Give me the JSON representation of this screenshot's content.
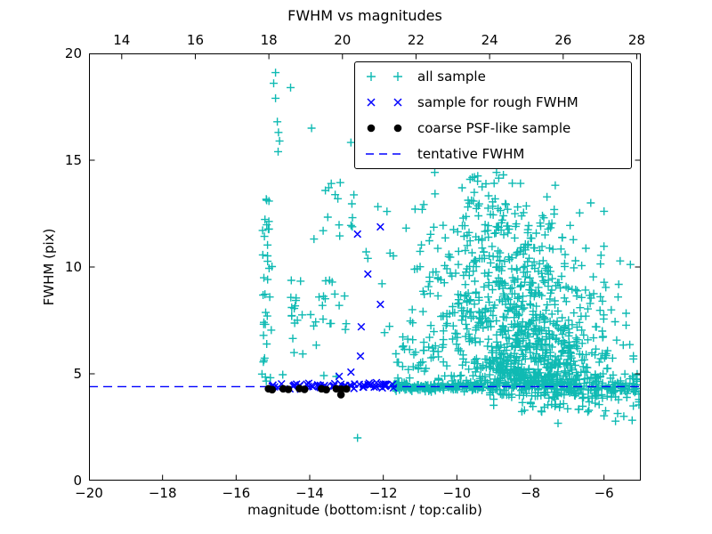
{
  "title": "FWHM vs magnitudes",
  "axes": {
    "xlabel": "magnitude (bottom:isnt / top:calib)",
    "ylabel": "FWHM (pix)",
    "xlim": [
      -20,
      -5
    ],
    "ylim": [
      0,
      20
    ],
    "x_bottom_ticks": [
      {
        "v": -20,
        "label": "−20"
      },
      {
        "v": -18,
        "label": "−18"
      },
      {
        "v": -16,
        "label": "−16"
      },
      {
        "v": -14,
        "label": "−14"
      },
      {
        "v": -12,
        "label": "−12"
      },
      {
        "v": -10,
        "label": "−10"
      },
      {
        "v": -8,
        "label": "−8"
      },
      {
        "v": -6,
        "label": "−6"
      }
    ],
    "x_top_ticks": [
      {
        "v": 14,
        "label": "14"
      },
      {
        "v": 16,
        "label": "16"
      },
      {
        "v": 18,
        "label": "18"
      },
      {
        "v": 20,
        "label": "20"
      },
      {
        "v": 22,
        "label": "22"
      },
      {
        "v": 24,
        "label": "24"
      },
      {
        "v": 26,
        "label": "26"
      },
      {
        "v": 28,
        "label": "28"
      }
    ],
    "top_axis_offset_calib_minus_isnt": 33.11,
    "y_left_ticks": [
      {
        "v": 0,
        "label": "0"
      },
      {
        "v": 5,
        "label": "5"
      },
      {
        "v": 10,
        "label": "10"
      },
      {
        "v": 15,
        "label": "15"
      },
      {
        "v": 20,
        "label": "20"
      }
    ]
  },
  "colors": {
    "all_sample": "#0fbab3",
    "rough_sample": "#0000ff",
    "psf_sample": "#000000",
    "tentative_line": "#0000ff",
    "axis": "#000000",
    "background": "#ffffff"
  },
  "legend": {
    "items": [
      {
        "label": "all sample",
        "marker": "plus",
        "color_key": "all_sample"
      },
      {
        "label": "sample for rough FWHM",
        "marker": "x",
        "color_key": "rough_sample"
      },
      {
        "label": "coarse PSF-like sample",
        "marker": "dot",
        "color_key": "psf_sample"
      },
      {
        "label": "tentative FWHM",
        "marker": "dashline",
        "color_key": "tentative_line"
      }
    ]
  },
  "chart_data": {
    "type": "scatter",
    "title": "FWHM vs magnitudes",
    "xlabel": "magnitude (bottom:isnt / top:calib)",
    "ylabel": "FWHM (pix)",
    "xlim": [
      -20,
      -5
    ],
    "ylim": [
      0,
      20
    ],
    "grid": false,
    "legend_position": "upper right",
    "tentative_fwhm_value": 4.4,
    "seed": 7,
    "note": "Dense scatter clouds are encoded as density clusters (dist u=uniform[min,max], g=gaussian[mu,sigma,clipmin,clipmax]) estimated from the pixels; distinctive points are listed explicitly.",
    "series": [
      {
        "name": "all sample",
        "marker": "plus",
        "color_key": "all_sample",
        "points_explicit": [
          [
            -14.93,
            19.1
          ],
          [
            -14.98,
            18.6
          ],
          [
            -14.52,
            18.4
          ],
          [
            -14.93,
            17.9
          ],
          [
            -14.88,
            16.8
          ],
          [
            -14.85,
            16.3
          ],
          [
            -14.82,
            15.9
          ],
          [
            -14.86,
            15.4
          ],
          [
            -13.95,
            16.5
          ],
          [
            -12.88,
            15.83
          ],
          [
            -11.9,
            12.6
          ],
          [
            -12.7,
            2.0
          ],
          [
            -6.36,
            13.0
          ],
          [
            -5.05,
            3.8
          ],
          [
            -5.12,
            4.65
          ]
        ],
        "clusters": [
          {
            "n": 34,
            "x": [
              "u",
              -15.3,
              -15.02
            ],
            "y": [
              "u",
              4.5,
              12.4
            ]
          },
          {
            "n": 3,
            "x": [
              "u",
              -15.3,
              -15.1
            ],
            "y": [
              "u",
              12.5,
              13.2
            ]
          },
          {
            "n": 30,
            "x": [
              "u",
              -14.75,
              -12.95
            ],
            "y": [
              "u",
              4.85,
              9.4
            ]
          },
          {
            "n": 8,
            "x": [
              "u",
              -14.55,
              -14.2
            ],
            "y": [
              "u",
              7.7,
              8.7
            ]
          },
          {
            "n": 16,
            "x": [
              "u",
              -14.0,
              -12.55
            ],
            "y": [
              "u",
              10.4,
              14.0
            ]
          },
          {
            "n": 18,
            "x": [
              "u",
              -12.6,
              -10.6
            ],
            "y": [
              "u",
              4.8,
              13.0
            ]
          },
          {
            "n": 40,
            "x": [
              "u",
              -11.7,
              -10.35
            ],
            "y": [
              "g",
              5.6,
              1.1,
              4.25,
              9.0
            ]
          },
          {
            "n": 20,
            "x": [
              "g",
              -8.9,
              0.9,
              -10.6,
              -6.2
            ],
            "y": [
              "u",
              13.2,
              14.5
            ]
          },
          {
            "n": 40,
            "x": [
              "g",
              -8.9,
              1.0,
              -10.9,
              -6.0
            ],
            "y": [
              "u",
              12.0,
              13.2
            ]
          },
          {
            "n": 65,
            "x": [
              "g",
              -8.7,
              1.05,
              -11.0,
              -5.9
            ],
            "y": [
              "u",
              10.8,
              12.0
            ]
          },
          {
            "n": 85,
            "x": [
              "g",
              -8.6,
              1.1,
              -11.0,
              -5.8
            ],
            "y": [
              "u",
              9.6,
              10.8
            ]
          },
          {
            "n": 110,
            "x": [
              "g",
              -8.4,
              1.15,
              -11.0,
              -5.6
            ],
            "y": [
              "u",
              8.4,
              9.6
            ]
          },
          {
            "n": 140,
            "x": [
              "g",
              -8.3,
              1.2,
              -11.2,
              -5.4
            ],
            "y": [
              "u",
              7.2,
              8.4
            ]
          },
          {
            "n": 170,
            "x": [
              "g",
              -8.1,
              1.15,
              -11.2,
              -5.3
            ],
            "y": [
              "u",
              6.0,
              7.2
            ]
          },
          {
            "n": 200,
            "x": [
              "g",
              -7.9,
              1.1,
              -11.0,
              -5.2
            ],
            "y": [
              "u",
              5.0,
              6.0
            ]
          },
          {
            "n": 170,
            "x": [
              "g",
              -7.7,
              1.2,
              -10.5,
              -5.1
            ],
            "y": [
              "u",
              4.5,
              5.0
            ]
          },
          {
            "n": 80,
            "x": [
              "g",
              -7.3,
              1.4,
              -10.0,
              -5.05
            ],
            "y": [
              "u",
              3.9,
              4.5
            ]
          },
          {
            "n": 40,
            "x": [
              "g",
              -7.0,
              1.3,
              -9.0,
              -5.05
            ],
            "y": [
              "u",
              3.2,
              3.9
            ]
          },
          {
            "n": 6,
            "x": [
              "g",
              -6.8,
              1.2,
              -8.0,
              -5.1
            ],
            "y": [
              "u",
              2.6,
              3.2
            ]
          },
          {
            "n": 150,
            "x": [
              "u",
              -11.75,
              -9.0
            ],
            "y": [
              "g",
              4.4,
              0.09,
              3.9,
              4.9
            ]
          },
          {
            "n": 130,
            "x": [
              "u",
              -9.0,
              -5.05
            ],
            "y": [
              "g",
              4.38,
              0.17,
              3.6,
              5.1
            ]
          },
          {
            "n": 10,
            "x": [
              "u",
              -6.85,
              -5.1
            ],
            "y": [
              "u",
              8.3,
              12.9
            ]
          }
        ]
      },
      {
        "name": "sample for rough FWHM",
        "marker": "x",
        "color_key": "rough_sample",
        "points_explicit": [
          [
            -13.2,
            4.88
          ],
          [
            -12.88,
            5.08
          ],
          [
            -12.62,
            5.83
          ],
          [
            -12.6,
            7.2
          ],
          [
            -12.08,
            8.25
          ],
          [
            -12.42,
            9.67
          ],
          [
            -12.7,
            11.54
          ],
          [
            -12.08,
            11.88
          ]
        ],
        "clusters": [
          {
            "n": 62,
            "x": [
              "u",
              -15.15,
              -11.72
            ],
            "y": [
              "g",
              4.43,
              0.07,
              4.2,
              4.66
            ]
          }
        ]
      },
      {
        "name": "coarse PSF-like sample",
        "marker": "dot",
        "color_key": "psf_sample",
        "points_explicit": [
          [
            -15.12,
            4.3
          ],
          [
            -15.02,
            4.26
          ],
          [
            -14.72,
            4.3
          ],
          [
            -14.58,
            4.27
          ],
          [
            -14.28,
            4.31
          ],
          [
            -14.14,
            4.27
          ],
          [
            -13.68,
            4.3
          ],
          [
            -13.55,
            4.26
          ],
          [
            -13.28,
            4.3
          ],
          [
            -13.14,
            4.28
          ],
          [
            -13.15,
            4.02
          ],
          [
            -13.0,
            4.29
          ]
        ],
        "clusters": []
      },
      {
        "name": "tentative FWHM",
        "marker": "dashline",
        "color_key": "tentative_line",
        "hline_y": 4.4
      }
    ]
  }
}
